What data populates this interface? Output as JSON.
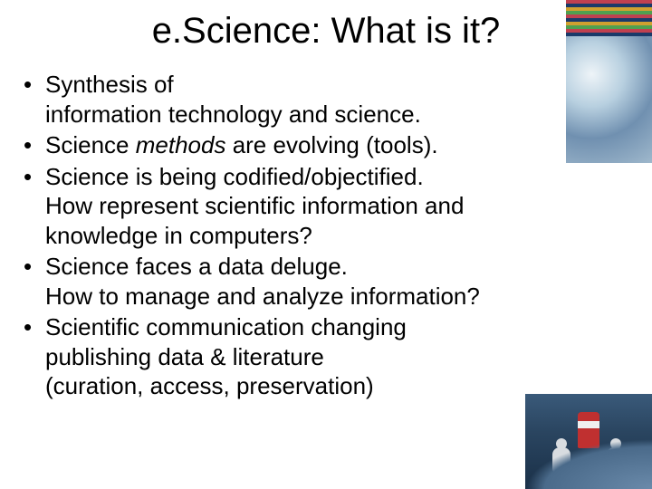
{
  "title": "e.Science:  What is it?",
  "bullets": [
    {
      "lines": [
        "Synthesis of",
        "information technology and science."
      ]
    },
    {
      "lines_html": "Science <span class=\"italic\">methods</span> are evolving (tools)."
    },
    {
      "lines": [
        "Science is being codified/objectified.",
        "How represent scientific information and knowledge in computers?"
      ]
    },
    {
      "lines": [
        "Science faces a data deluge.",
        "How to manage and analyze information?"
      ]
    },
    {
      "lines": [
        "Scientific communication changing",
        "publishing data & literature",
        "(curation, access, preservation)"
      ]
    }
  ],
  "colors": {
    "background": "#ffffff",
    "text": "#000000"
  },
  "typography": {
    "title_fontsize": 40,
    "body_fontsize": 26,
    "font_family": "Arial"
  },
  "images": {
    "top_right": "genomic-data-and-molecular-cloud-illustration",
    "bottom_right": "data-deluge-astronauts-on-wave-illustration"
  }
}
